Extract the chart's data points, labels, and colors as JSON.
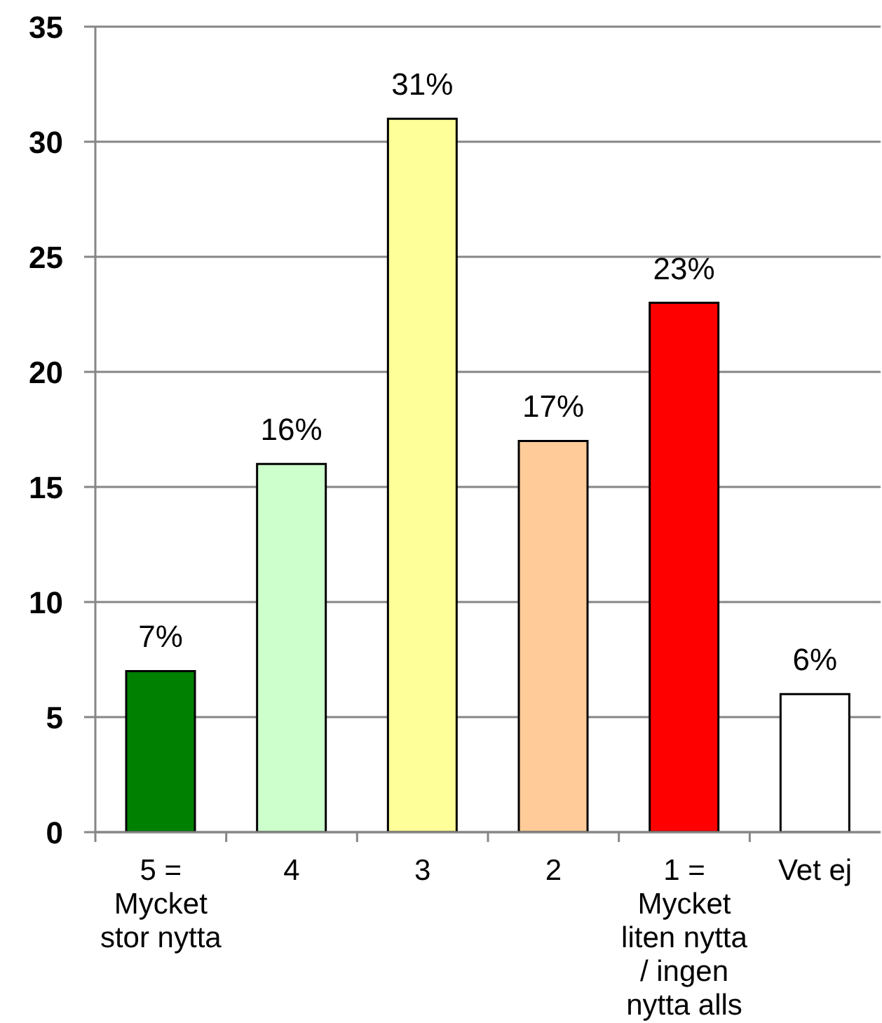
{
  "chart_data": {
    "type": "bar",
    "categories": [
      "5 = Mycket stor nytta",
      "4",
      "3",
      "2",
      "1 = Mycket liten nytta / ingen nytta alls",
      "Vet ej"
    ],
    "values": [
      7,
      16,
      31,
      17,
      23,
      6
    ],
    "colors": [
      "#008000",
      "#ccffcc",
      "#ffff99",
      "#ffcc99",
      "#ff0000",
      "#ffffff"
    ],
    "value_labels": [
      "7%",
      "16%",
      "31%",
      "17%",
      "23%",
      "6%"
    ],
    "ylim": [
      0,
      35
    ],
    "yticks": [
      0,
      5,
      10,
      15,
      20,
      25,
      30,
      35
    ],
    "grid": "y"
  }
}
